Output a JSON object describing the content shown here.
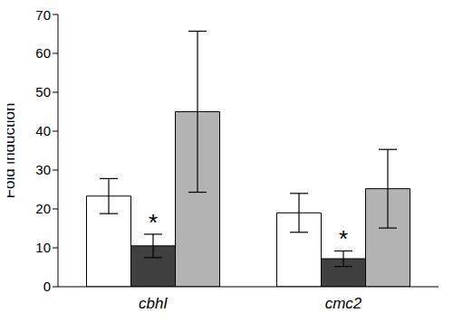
{
  "chart_data": {
    "type": "bar",
    "categories": [
      "cbhI",
      "cmc2"
    ],
    "y_label": "Fold induction",
    "ylim": [
      0,
      70
    ],
    "yticks": [
      0,
      10,
      20,
      30,
      40,
      50,
      60,
      70
    ],
    "grid": false,
    "series": [
      {
        "color": "#ffffff",
        "values": [
          23.3,
          19.0
        ],
        "errors": [
          4.5,
          5.0
        ]
      },
      {
        "color": "#404040",
        "values": [
          10.5,
          7.2
        ],
        "errors": [
          3.0,
          2.0
        ]
      },
      {
        "color": "#b3b3b3",
        "values": [
          45.0,
          25.2
        ],
        "errors": [
          20.7,
          10.1
        ]
      }
    ],
    "annotations": [
      {
        "text": "*",
        "category": "cbhI",
        "series": 1
      },
      {
        "text": "*",
        "category": "cmc2",
        "series": 1
      }
    ]
  }
}
